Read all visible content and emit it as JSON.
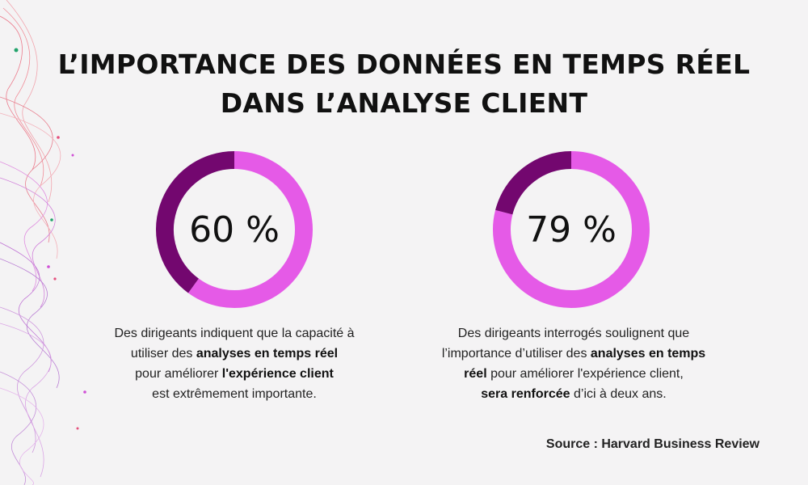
{
  "title": {
    "line1": "L’IMPORTANCE DES DONNÉES EN TEMPS RÉEL",
    "line2": "DANS L’ANALYSE CLIENT"
  },
  "colors": {
    "highlight": "#e55ae7",
    "remainder": "#73076f",
    "background": "#f4f3f4"
  },
  "chart_data": [
    {
      "type": "pie",
      "label": "60 %",
      "values": [
        60,
        40
      ],
      "segment_colors": [
        "#e55ae7",
        "#73076f"
      ]
    },
    {
      "type": "pie",
      "label": "79 %",
      "values": [
        79,
        21
      ],
      "segment_colors": [
        "#e55ae7",
        "#73076f"
      ]
    }
  ],
  "stats": [
    {
      "lines": [
        [
          {
            "t": "Des dirigeants indiquent que la capacité à"
          }
        ],
        [
          {
            "t": "utiliser des "
          },
          {
            "t": "analyses en temps réel",
            "b": true
          }
        ],
        [
          {
            "t": "pour améliorer "
          },
          {
            "t": "l'expérience client",
            "b": true
          }
        ],
        [
          {
            "t": "est extrêmement importante."
          }
        ]
      ]
    },
    {
      "lines": [
        [
          {
            "t": "Des dirigeants interrogés soulignent que"
          }
        ],
        [
          {
            "t": "l’importance d’utiliser des "
          },
          {
            "t": "analyses en temps",
            "b": true
          }
        ],
        [
          {
            "t": "réel",
            "b": true
          },
          {
            "t": " pour améliorer l'expérience client,"
          }
        ],
        [
          {
            "t": "sera renforcée",
            "b": true
          },
          {
            "t": " d’ici à deux ans."
          }
        ]
      ]
    }
  ],
  "source": "Source : Harvard Business Review"
}
